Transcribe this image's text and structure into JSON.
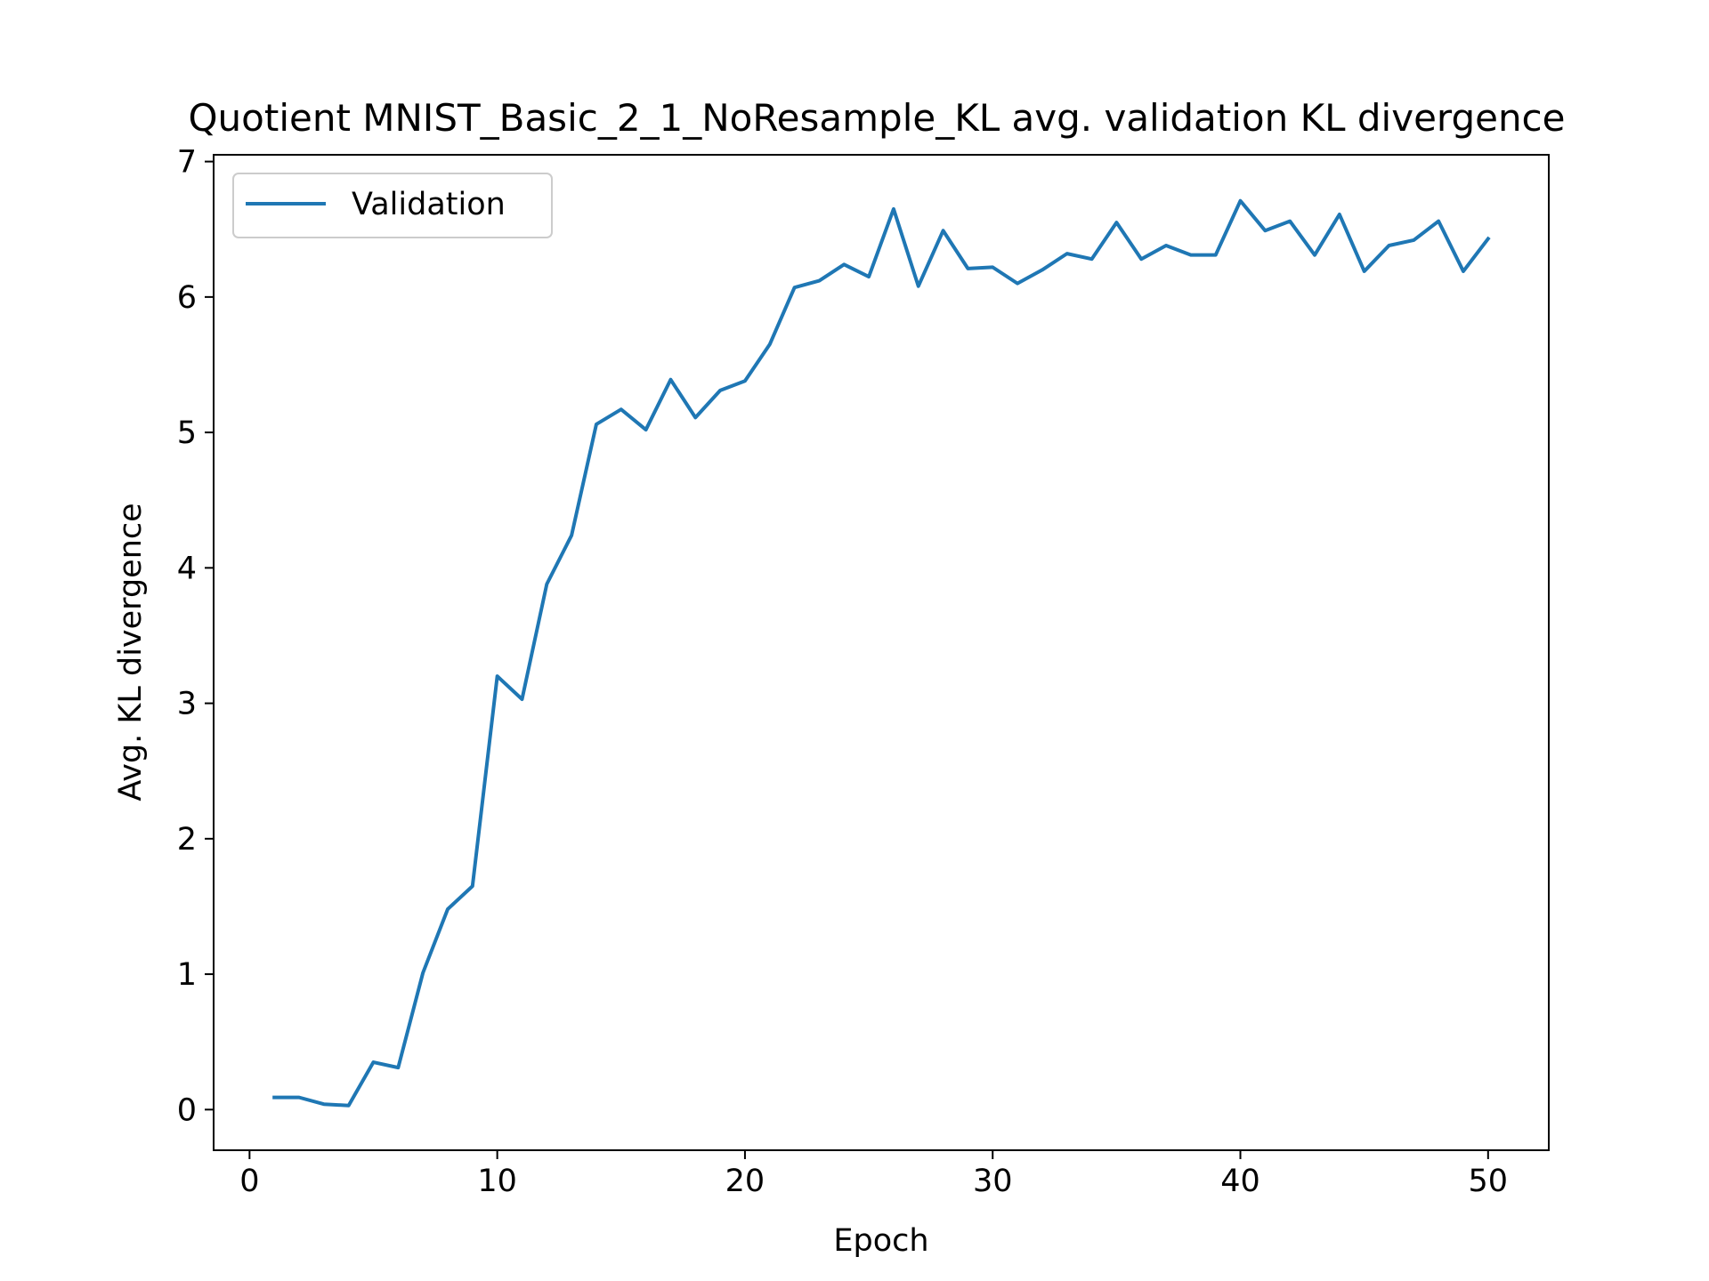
{
  "chart_data": {
    "type": "line",
    "title": "Quotient MNIST_Basic_2_1_NoResample_KL avg. validation KL divergence",
    "xlabel": "Epoch",
    "ylabel": "Avg. KL divergence",
    "xlim": [
      -1.45,
      52.45
    ],
    "ylim": [
      -0.3,
      7.05
    ],
    "xticks": [
      0,
      10,
      20,
      30,
      40,
      50
    ],
    "yticks": [
      0,
      1,
      2,
      3,
      4,
      5,
      6,
      7
    ],
    "grid": false,
    "legend_position": "upper-left",
    "series": [
      {
        "name": "Validation",
        "color": "#1f77b4",
        "x": [
          1,
          2,
          3,
          4,
          5,
          6,
          7,
          8,
          9,
          10,
          11,
          12,
          13,
          14,
          15,
          16,
          17,
          18,
          19,
          20,
          21,
          22,
          23,
          24,
          25,
          26,
          27,
          28,
          29,
          30,
          31,
          32,
          33,
          34,
          35,
          36,
          37,
          38,
          39,
          40,
          41,
          42,
          43,
          44,
          45,
          46,
          47,
          48,
          49,
          50
        ],
        "values": [
          0.09,
          0.09,
          0.04,
          0.03,
          0.35,
          0.31,
          1.01,
          1.48,
          1.65,
          3.2,
          3.03,
          3.88,
          4.24,
          5.06,
          5.17,
          5.02,
          5.39,
          5.11,
          5.31,
          5.38,
          5.65,
          6.07,
          6.12,
          6.24,
          6.15,
          6.65,
          6.08,
          6.49,
          6.21,
          6.22,
          6.1,
          6.2,
          6.32,
          6.28,
          6.55,
          6.28,
          6.38,
          6.31,
          6.31,
          6.71,
          6.49,
          6.56,
          6.31,
          6.61,
          6.19,
          6.38,
          6.42,
          6.56,
          6.19,
          6.43
        ]
      }
    ]
  }
}
